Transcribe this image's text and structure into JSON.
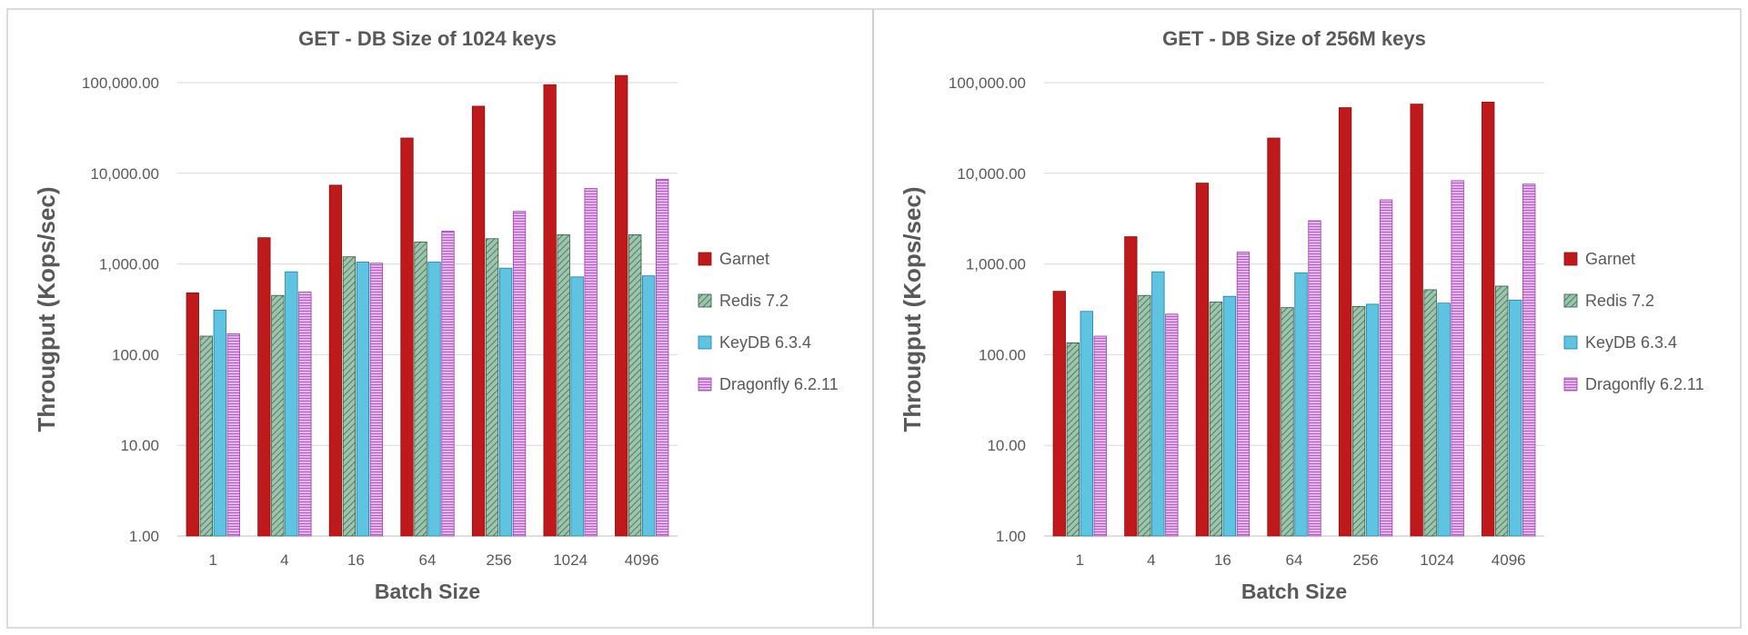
{
  "chart_data": [
    {
      "type": "bar",
      "title": "GET - DB Size of 1024 keys",
      "xlabel": "Batch Size",
      "ylabel": "Througput (Kops/sec)",
      "yscale": "log",
      "ylim": [
        1,
        100000
      ],
      "yticks": [
        "1.00",
        "10.00",
        "100.00",
        "1,000.00",
        "10,000.00",
        "100,000.00"
      ],
      "categories": [
        "1",
        "4",
        "16",
        "64",
        "256",
        "1024",
        "4096"
      ],
      "grid": true,
      "legend_position": "right",
      "series": [
        {
          "name": "Garnet",
          "values": [
            480,
            1950,
            7400,
            24500,
            55000,
            95000,
            120000
          ]
        },
        {
          "name": "Redis 7.2",
          "values": [
            160,
            450,
            1200,
            1750,
            1900,
            2100,
            2100
          ]
        },
        {
          "name": "KeyDB 6.3.4",
          "values": [
            310,
            820,
            1050,
            1050,
            900,
            720,
            740
          ]
        },
        {
          "name": "Dragonfly 6.2.11",
          "values": [
            170,
            490,
            1020,
            2300,
            3800,
            6800,
            8600
          ]
        }
      ]
    },
    {
      "type": "bar",
      "title": "GET - DB Size of 256M keys",
      "xlabel": "Batch Size",
      "ylabel": "Througput (Kops/sec)",
      "yscale": "log",
      "ylim": [
        1,
        100000
      ],
      "yticks": [
        "1.00",
        "10.00",
        "100.00",
        "1,000.00",
        "10,000.00",
        "100,000.00"
      ],
      "categories": [
        "1",
        "4",
        "16",
        "64",
        "256",
        "1024",
        "4096"
      ],
      "grid": true,
      "legend_position": "right",
      "series": [
        {
          "name": "Garnet",
          "values": [
            500,
            2000,
            7800,
            24500,
            53000,
            58000,
            61000
          ]
        },
        {
          "name": "Redis 7.2",
          "values": [
            135,
            450,
            380,
            330,
            340,
            520,
            570
          ]
        },
        {
          "name": "KeyDB 6.3.4",
          "values": [
            300,
            820,
            440,
            800,
            360,
            370,
            400
          ]
        },
        {
          "name": "Dragonfly 6.2.11",
          "values": [
            160,
            280,
            1350,
            3000,
            5100,
            8300,
            7600
          ]
        }
      ]
    }
  ],
  "styles": {
    "series_colors": [
      "#c0191c",
      "#8fb8a0",
      "#5ec4e2",
      "#d89be0"
    ],
    "series_strokes": [
      "#8b1010",
      "#2d5a40",
      "#1e7da0",
      "#9b3fa8"
    ],
    "series_patterns": [
      "solid",
      "diagonal-hatch",
      "solid",
      "horizontal-lines"
    ],
    "grid_color": "#d9d9d9",
    "text_color": "#595959",
    "border_color": "#d0d0d0"
  }
}
